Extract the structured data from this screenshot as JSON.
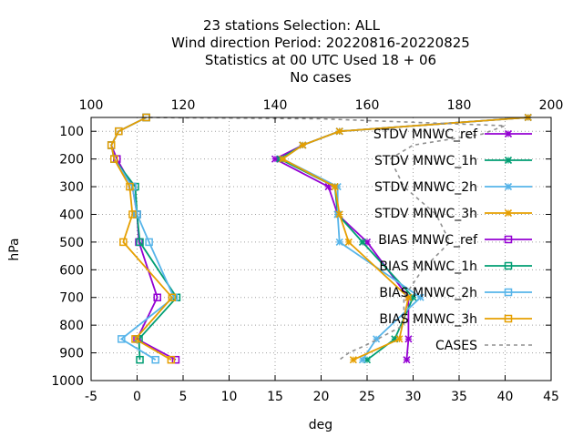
{
  "chart_data": {
    "type": "line",
    "title_lines": [
      "23 stations Selection: ALL",
      "Wind direction  Period: 20220816-20220825",
      "Statistics at 00 UTC  Used  18 + 06",
      "No cases"
    ],
    "xlabel": "deg",
    "ylabel": "hPa",
    "xlim": [
      -5,
      45
    ],
    "ylim": [
      1000,
      50
    ],
    "x2lim": [
      100,
      200
    ],
    "x_ticks": [
      -5,
      0,
      5,
      10,
      15,
      20,
      25,
      30,
      35,
      40,
      45
    ],
    "x_tick_labels": [
      "-5",
      "0",
      "5",
      "10",
      "15",
      "20",
      "25",
      "30",
      "35",
      "40",
      "45"
    ],
    "x2_ticks": [
      100,
      120,
      140,
      160,
      180,
      200
    ],
    "x2_tick_labels": [
      "100",
      "120",
      "140",
      "160",
      "180",
      "200"
    ],
    "y_ticks": [
      100,
      200,
      300,
      400,
      500,
      600,
      700,
      800,
      900,
      1000
    ],
    "y_tick_labels": [
      "100",
      "200",
      "300",
      "400",
      "500",
      "600",
      "700",
      "800",
      "900",
      "1000"
    ],
    "grid": true,
    "legend_position": "top-right",
    "series": [
      {
        "name": "STDV MNWC_ref",
        "legend_label": "STDV MNWC_ref",
        "color": "#9400d3",
        "marker": "x",
        "points": [
          [
            42.5,
            50
          ],
          [
            22,
            100
          ],
          [
            18,
            150
          ],
          [
            15,
            200
          ],
          [
            20.8,
            300
          ],
          [
            21.8,
            400
          ],
          [
            25,
            500
          ],
          [
            29.5,
            700
          ],
          [
            29.5,
            850
          ],
          [
            29.3,
            925
          ]
        ]
      },
      {
        "name": "STDV MNWC_1h",
        "legend_label": "STDV MNWC_1h",
        "color": "#009e73",
        "marker": "x",
        "points": [
          [
            42.5,
            50
          ],
          [
            22,
            100
          ],
          [
            18,
            150
          ],
          [
            15.5,
            200
          ],
          [
            21.5,
            300
          ],
          [
            21.8,
            400
          ],
          [
            24.5,
            500
          ],
          [
            30,
            700
          ],
          [
            28,
            850
          ],
          [
            25,
            925
          ]
        ]
      },
      {
        "name": "STDV MNWC_2h",
        "legend_label": "STDV MNWC_2h",
        "color": "#56b4e9",
        "marker": "x",
        "points": [
          [
            42.5,
            50
          ],
          [
            22,
            100
          ],
          [
            18,
            150
          ],
          [
            15.8,
            200
          ],
          [
            21.8,
            300
          ],
          [
            21.8,
            400
          ],
          [
            22,
            500
          ],
          [
            30.8,
            700
          ],
          [
            26,
            850
          ],
          [
            24.5,
            925
          ]
        ]
      },
      {
        "name": "STDV MNWC_3h",
        "legend_label": "STDV MNWC_3h",
        "color": "#e69f00",
        "marker": "x",
        "points": [
          [
            42.5,
            50
          ],
          [
            22,
            100
          ],
          [
            18,
            150
          ],
          [
            15.8,
            200
          ],
          [
            21.5,
            300
          ],
          [
            22,
            400
          ],
          [
            23,
            500
          ],
          [
            29.5,
            700
          ],
          [
            28.5,
            850
          ],
          [
            23.5,
            925
          ]
        ]
      },
      {
        "name": "BIAS MNWC_ref",
        "legend_label": "BIAS MNWC_ref",
        "color": "#9400d3",
        "marker": "square",
        "points": [
          [
            1,
            50
          ],
          [
            -2,
            100
          ],
          [
            -2.8,
            150
          ],
          [
            -2.2,
            200
          ],
          [
            -0.5,
            300
          ],
          [
            0,
            400
          ],
          [
            0.2,
            500
          ],
          [
            2.2,
            700
          ],
          [
            0,
            850
          ],
          [
            4.2,
            925
          ]
        ]
      },
      {
        "name": "BIAS MNWC_1h",
        "legend_label": "BIAS MNWC_1h",
        "color": "#009e73",
        "marker": "square",
        "points": [
          [
            1,
            50
          ],
          [
            -2,
            100
          ],
          [
            -2.8,
            150
          ],
          [
            -2.5,
            200
          ],
          [
            -0.2,
            300
          ],
          [
            0,
            400
          ],
          [
            0.3,
            500
          ],
          [
            4.3,
            700
          ],
          [
            0.2,
            850
          ],
          [
            0.3,
            925
          ]
        ]
      },
      {
        "name": "BIAS MNWC_2h",
        "legend_label": "BIAS MNWC_2h",
        "color": "#56b4e9",
        "marker": "square",
        "points": [
          [
            1,
            50
          ],
          [
            -2,
            100
          ],
          [
            -2.8,
            150
          ],
          [
            -2.5,
            200
          ],
          [
            -0.5,
            300
          ],
          [
            0,
            400
          ],
          [
            1.3,
            500
          ],
          [
            4,
            700
          ],
          [
            -1.7,
            850
          ],
          [
            2,
            925
          ]
        ]
      },
      {
        "name": "BIAS MNWC_3h",
        "legend_label": "BIAS MNWC_3h",
        "color": "#e69f00",
        "marker": "square",
        "points": [
          [
            1,
            50
          ],
          [
            -2,
            100
          ],
          [
            -2.8,
            150
          ],
          [
            -2.5,
            200
          ],
          [
            -0.8,
            300
          ],
          [
            -0.5,
            400
          ],
          [
            -1.5,
            500
          ],
          [
            3.8,
            700
          ],
          [
            -0.2,
            850
          ],
          [
            3.7,
            925
          ]
        ]
      },
      {
        "name": "CASES",
        "legend_label": "CASES",
        "color": "#909090",
        "axis": "x2",
        "marker": "none",
        "dashed": true,
        "points": [
          [
            111,
            50
          ],
          [
            150,
            55
          ],
          [
            190,
            80
          ],
          [
            185,
            110
          ],
          [
            170,
            150
          ],
          [
            165,
            200
          ],
          [
            168,
            300
          ],
          [
            175,
            400
          ],
          [
            178,
            500
          ],
          [
            172,
            600
          ],
          [
            168,
            700
          ],
          [
            168,
            800
          ],
          [
            160,
            870
          ],
          [
            156,
            900
          ],
          [
            154,
            925
          ]
        ]
      }
    ]
  }
}
